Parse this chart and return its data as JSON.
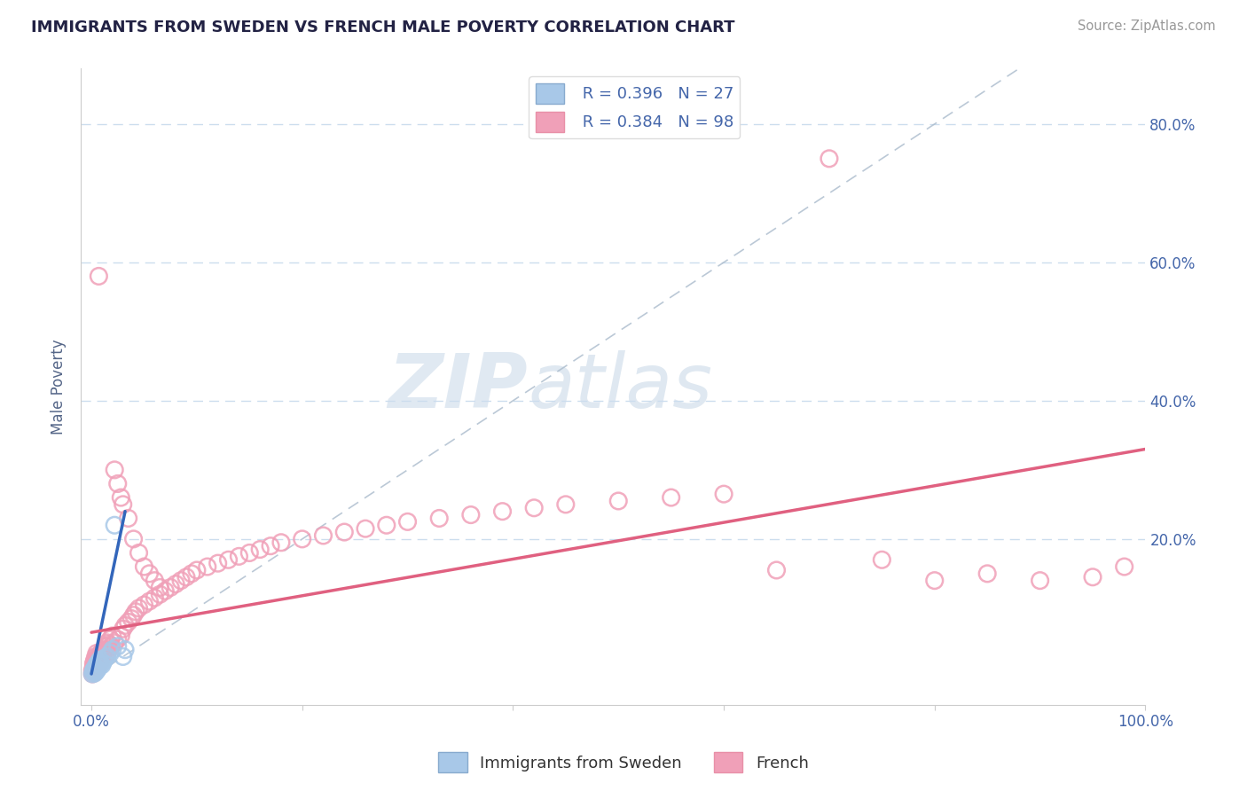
{
  "title": "IMMIGRANTS FROM SWEDEN VS FRENCH MALE POVERTY CORRELATION CHART",
  "source": "Source: ZipAtlas.com",
  "ylabel": "Male Poverty",
  "xlim": [
    -0.01,
    1.0
  ],
  "ylim": [
    -0.04,
    0.88
  ],
  "xticks": [
    0.0,
    0.2,
    0.4,
    0.6,
    0.8,
    1.0
  ],
  "yticks": [
    0.0,
    0.2,
    0.4,
    0.6,
    0.8
  ],
  "legend_r1": "R = 0.396",
  "legend_n1": "N = 27",
  "legend_r2": "R = 0.384",
  "legend_n2": "N = 98",
  "legend_label1": "Immigrants from Sweden",
  "legend_label2": "French",
  "blue_scatter_color": "#A8C8E8",
  "pink_scatter_color": "#F0A0B8",
  "blue_line_color": "#3366BB",
  "pink_line_color": "#E06080",
  "diag_color": "#AABBCC",
  "grid_color": "#CCDDEE",
  "title_color": "#222244",
  "axis_label_color": "#4466AA",
  "watermark_zip": "ZIP",
  "watermark_atlas": "atlas",
  "sweden_points": [
    [
      0.001,
      0.005
    ],
    [
      0.002,
      0.008
    ],
    [
      0.002,
      0.01
    ],
    [
      0.003,
      0.006
    ],
    [
      0.003,
      0.012
    ],
    [
      0.004,
      0.008
    ],
    [
      0.004,
      0.015
    ],
    [
      0.005,
      0.01
    ],
    [
      0.005,
      0.018
    ],
    [
      0.006,
      0.012
    ],
    [
      0.006,
      0.02
    ],
    [
      0.007,
      0.015
    ],
    [
      0.007,
      0.022
    ],
    [
      0.008,
      0.018
    ],
    [
      0.008,
      0.025
    ],
    [
      0.009,
      0.02
    ],
    [
      0.01,
      0.018
    ],
    [
      0.011,
      0.022
    ],
    [
      0.012,
      0.025
    ],
    [
      0.013,
      0.028
    ],
    [
      0.015,
      0.03
    ],
    [
      0.018,
      0.035
    ],
    [
      0.02,
      0.04
    ],
    [
      0.022,
      0.22
    ],
    [
      0.025,
      0.045
    ],
    [
      0.03,
      0.03
    ],
    [
      0.032,
      0.04
    ]
  ],
  "french_points": [
    [
      0.001,
      0.005
    ],
    [
      0.001,
      0.01
    ],
    [
      0.002,
      0.008
    ],
    [
      0.002,
      0.015
    ],
    [
      0.002,
      0.02
    ],
    [
      0.003,
      0.01
    ],
    [
      0.003,
      0.018
    ],
    [
      0.003,
      0.025
    ],
    [
      0.004,
      0.012
    ],
    [
      0.004,
      0.02
    ],
    [
      0.004,
      0.03
    ],
    [
      0.005,
      0.015
    ],
    [
      0.005,
      0.025
    ],
    [
      0.005,
      0.035
    ],
    [
      0.006,
      0.018
    ],
    [
      0.006,
      0.03
    ],
    [
      0.007,
      0.02
    ],
    [
      0.007,
      0.028
    ],
    [
      0.007,
      0.58
    ],
    [
      0.008,
      0.022
    ],
    [
      0.008,
      0.032
    ],
    [
      0.009,
      0.025
    ],
    [
      0.009,
      0.035
    ],
    [
      0.01,
      0.028
    ],
    [
      0.01,
      0.038
    ],
    [
      0.011,
      0.03
    ],
    [
      0.012,
      0.035
    ],
    [
      0.013,
      0.04
    ],
    [
      0.014,
      0.045
    ],
    [
      0.015,
      0.035
    ],
    [
      0.015,
      0.05
    ],
    [
      0.016,
      0.04
    ],
    [
      0.017,
      0.048
    ],
    [
      0.018,
      0.055
    ],
    [
      0.019,
      0.045
    ],
    [
      0.02,
      0.06
    ],
    [
      0.022,
      0.05
    ],
    [
      0.022,
      0.3
    ],
    [
      0.025,
      0.055
    ],
    [
      0.025,
      0.28
    ],
    [
      0.028,
      0.06
    ],
    [
      0.028,
      0.26
    ],
    [
      0.03,
      0.07
    ],
    [
      0.03,
      0.25
    ],
    [
      0.032,
      0.075
    ],
    [
      0.035,
      0.08
    ],
    [
      0.035,
      0.23
    ],
    [
      0.038,
      0.085
    ],
    [
      0.04,
      0.09
    ],
    [
      0.04,
      0.2
    ],
    [
      0.042,
      0.095
    ],
    [
      0.045,
      0.1
    ],
    [
      0.045,
      0.18
    ],
    [
      0.05,
      0.105
    ],
    [
      0.05,
      0.16
    ],
    [
      0.055,
      0.11
    ],
    [
      0.055,
      0.15
    ],
    [
      0.06,
      0.115
    ],
    [
      0.06,
      0.14
    ],
    [
      0.065,
      0.12
    ],
    [
      0.065,
      0.13
    ],
    [
      0.07,
      0.125
    ],
    [
      0.075,
      0.13
    ],
    [
      0.08,
      0.135
    ],
    [
      0.085,
      0.14
    ],
    [
      0.09,
      0.145
    ],
    [
      0.095,
      0.15
    ],
    [
      0.1,
      0.155
    ],
    [
      0.11,
      0.16
    ],
    [
      0.12,
      0.165
    ],
    [
      0.13,
      0.17
    ],
    [
      0.14,
      0.175
    ],
    [
      0.15,
      0.18
    ],
    [
      0.16,
      0.185
    ],
    [
      0.17,
      0.19
    ],
    [
      0.18,
      0.195
    ],
    [
      0.2,
      0.2
    ],
    [
      0.22,
      0.205
    ],
    [
      0.24,
      0.21
    ],
    [
      0.26,
      0.215
    ],
    [
      0.28,
      0.22
    ],
    [
      0.3,
      0.225
    ],
    [
      0.33,
      0.23
    ],
    [
      0.36,
      0.235
    ],
    [
      0.39,
      0.24
    ],
    [
      0.42,
      0.245
    ],
    [
      0.45,
      0.25
    ],
    [
      0.5,
      0.255
    ],
    [
      0.55,
      0.26
    ],
    [
      0.6,
      0.265
    ],
    [
      0.65,
      0.155
    ],
    [
      0.7,
      0.75
    ],
    [
      0.75,
      0.17
    ],
    [
      0.8,
      0.14
    ],
    [
      0.85,
      0.15
    ],
    [
      0.9,
      0.14
    ],
    [
      0.95,
      0.145
    ],
    [
      0.98,
      0.16
    ]
  ],
  "sweden_line_x": [
    0.0,
    0.032
  ],
  "sweden_line_y": [
    0.005,
    0.24
  ],
  "french_line_x": [
    0.0,
    1.0
  ],
  "french_line_y": [
    0.065,
    0.33
  ]
}
